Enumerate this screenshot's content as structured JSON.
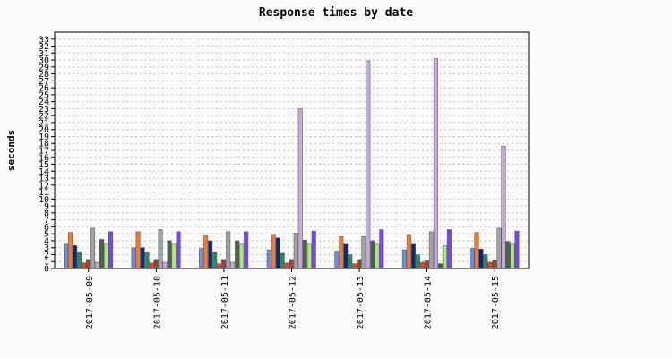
{
  "chart_data": {
    "type": "bar",
    "title": "Response times by date",
    "xlabel": "",
    "ylabel": "seconds",
    "ylim": [
      0,
      34
    ],
    "yticks": [
      0,
      1,
      2,
      3,
      4,
      5,
      6,
      7,
      8,
      9,
      10,
      11,
      12,
      13,
      14,
      15,
      16,
      17,
      18,
      19,
      20,
      21,
      22,
      23,
      24,
      25,
      26,
      27,
      28,
      29,
      30,
      31,
      32,
      33
    ],
    "grid": true,
    "legend": "none",
    "categories": [
      "2017-05-09",
      "2017-05-10",
      "2017-05-11",
      "2017-05-12",
      "2017-05-13",
      "2017-05-14",
      "2017-05-15"
    ],
    "series": [
      {
        "color": "#6b8ee0",
        "values": [
          3.5,
          3.0,
          2.9,
          2.7,
          2.5,
          2.7,
          2.9
        ]
      },
      {
        "color": "#f07a30",
        "values": [
          5.2,
          5.3,
          4.7,
          4.8,
          4.6,
          4.8,
          5.2
        ]
      },
      {
        "color": "#0a2a78",
        "values": [
          3.3,
          3.0,
          4.0,
          4.4,
          3.5,
          3.5,
          2.8
        ]
      },
      {
        "color": "#2e8a5a",
        "values": [
          2.3,
          2.3,
          2.3,
          2.2,
          2.0,
          2.0,
          2.0
        ]
      },
      {
        "color": "#e8402a",
        "values": [
          0.8,
          0.8,
          0.7,
          0.8,
          0.7,
          0.9,
          0.9
        ]
      },
      {
        "color": "#8a4a3a",
        "values": [
          1.3,
          1.3,
          1.3,
          1.3,
          1.3,
          1.1,
          1.2
        ]
      },
      {
        "color": "#a0a4a8",
        "values": [
          5.8,
          5.6,
          5.3,
          5.1,
          4.6,
          5.3,
          5.8
        ]
      },
      {
        "color": "#c8a8d8",
        "values": [
          0.9,
          0.9,
          0.9,
          23.0,
          29.9,
          30.2,
          17.6
        ]
      },
      {
        "color": "#506050",
        "values": [
          4.2,
          4.0,
          4.0,
          4.1,
          4.0,
          0.7,
          3.9
        ]
      },
      {
        "color": "#a8e878",
        "values": [
          3.5,
          3.5,
          3.5,
          3.5,
          3.5,
          3.3,
          3.5
        ]
      },
      {
        "color": "#7a44ee",
        "values": [
          5.3,
          5.3,
          5.3,
          5.4,
          5.6,
          5.6,
          5.4
        ]
      }
    ],
    "notes_colors": {
      "plot_border": "#000000",
      "gridline": "#c0c0c0",
      "background": "#fafafa"
    }
  }
}
